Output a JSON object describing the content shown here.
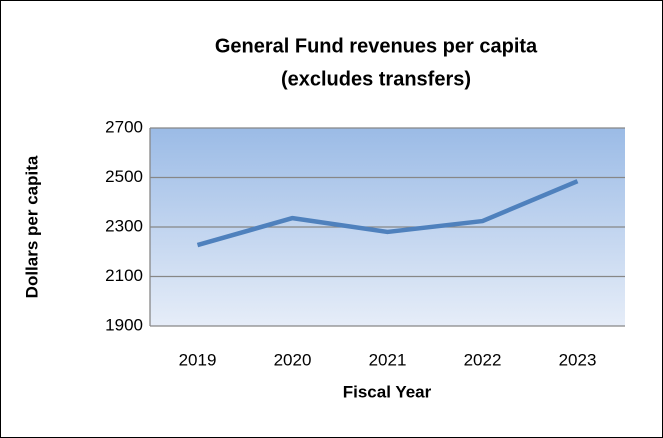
{
  "chart_data": {
    "type": "line",
    "title": "General Fund revenues per capita",
    "subtitle": "(excludes transfers)",
    "x_label": "Fiscal Year",
    "y_label": "Dollars per capita",
    "categories": [
      "2019",
      "2020",
      "2021",
      "2022",
      "2023"
    ],
    "series": [
      {
        "name": "General Fund revenues per capita",
        "color": "#4f81bd",
        "values": [
          2227,
          2336,
          2280,
          2324,
          2485
        ]
      }
    ],
    "ylim": [
      1900,
      2700
    ],
    "yticks": [
      1900,
      2100,
      2300,
      2500,
      2700
    ],
    "grid": true,
    "legend": false
  }
}
